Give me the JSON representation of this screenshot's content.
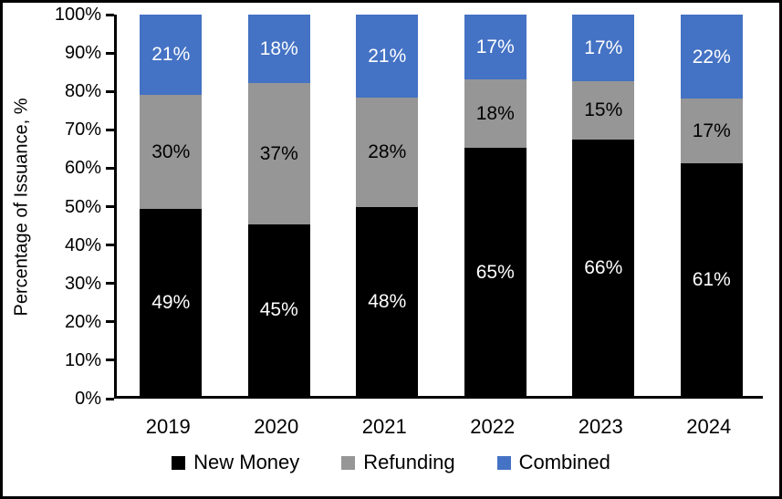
{
  "chart_data": {
    "type": "bar",
    "stacked": true,
    "stacked_to_100": true,
    "title": "",
    "xlabel": "",
    "ylabel": "Percentage of Issuance, %",
    "ylim": [
      0,
      100
    ],
    "ytick_step": 10,
    "ytick_labels": [
      "0%",
      "10%",
      "20%",
      "30%",
      "40%",
      "50%",
      "60%",
      "70%",
      "80%",
      "90%",
      "100%"
    ],
    "grid": false,
    "legend_position": "bottom",
    "categories": [
      "2019",
      "2020",
      "2021",
      "2022",
      "2023",
      "2024"
    ],
    "series": [
      {
        "name": "New Money",
        "color": "#000000",
        "label_color": "#ffffff",
        "values": [
          49,
          45,
          48,
          65,
          66,
          61
        ],
        "labels": [
          "49%",
          "45%",
          "48%",
          "65%",
          "66%",
          "61%"
        ]
      },
      {
        "name": "Refunding",
        "color": "#969696",
        "label_color": "#000000",
        "values": [
          30,
          37,
          28,
          18,
          15,
          17
        ],
        "labels": [
          "30%",
          "37%",
          "28%",
          "18%",
          "15%",
          "17%"
        ]
      },
      {
        "name": "Combined",
        "color": "#4472C4",
        "label_color": "#ffffff",
        "values": [
          21,
          18,
          21,
          17,
          17,
          22
        ],
        "labels": [
          "21%",
          "18%",
          "21%",
          "17%",
          "17%",
          "22%"
        ]
      }
    ]
  }
}
